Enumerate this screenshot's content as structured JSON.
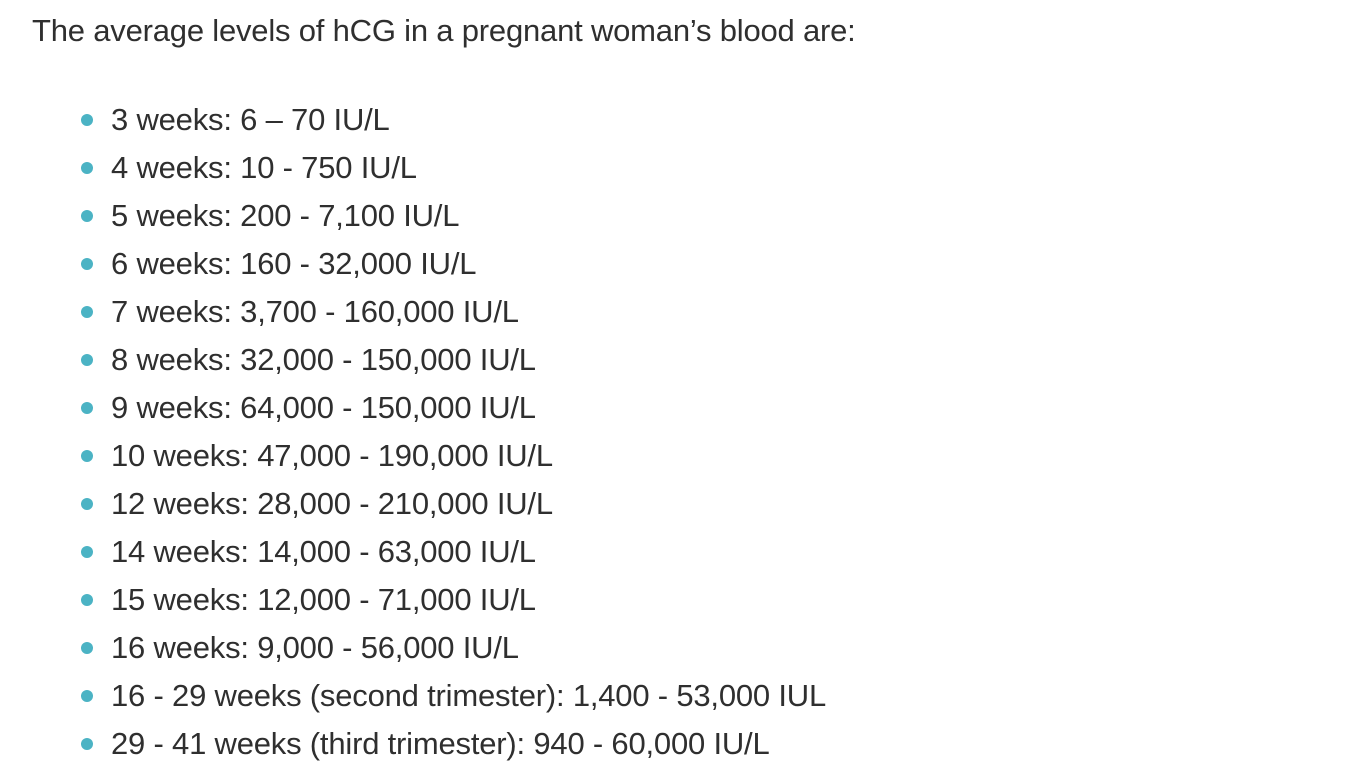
{
  "article": {
    "intro": "The average levels of hCG in a pregnant woman’s blood are:",
    "bullet_color": "#4bb3c4",
    "levels": [
      "3 weeks: 6 – 70 IU/L",
      "4 weeks: 10 - 750 IU/L",
      "5 weeks: 200 - 7,100 IU/L",
      "6 weeks: 160 - 32,000 IU/L",
      "7 weeks: 3,700 - 160,000 IU/L",
      "8 weeks: 32,000 - 150,000 IU/L",
      "9 weeks: 64,000 - 150,000 IU/L",
      "10 weeks: 47,000 - 190,000 IU/L",
      "12 weeks: 28,000 - 210,000 IU/L",
      "14 weeks: 14,000 - 63,000 IU/L",
      "15 weeks: 12,000 - 71,000 IU/L",
      "16 weeks: 9,000 - 56,000 IU/L",
      "16 - 29 weeks (second trimester): 1,400 - 53,000 IUL",
      "29 - 41 weeks (third trimester): 940 - 60,000 IU/L"
    ]
  }
}
